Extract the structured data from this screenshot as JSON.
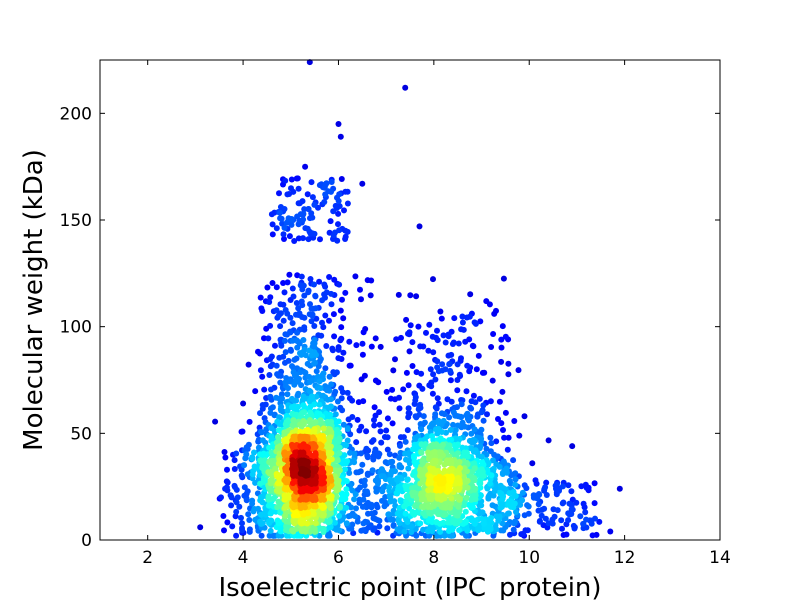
{
  "chart_data": {
    "type": "scatter",
    "title": "",
    "xlabel": "Isoelectric point (IPC_protein)",
    "ylabel": "Molecular weight (kDa)",
    "xlim": [
      1,
      14
    ],
    "ylim": [
      0,
      225
    ],
    "xticks": [
      2,
      4,
      6,
      8,
      10,
      12,
      14
    ],
    "yticks": [
      0,
      50,
      100,
      150,
      200
    ],
    "grid": false,
    "legend": "none",
    "colormap": "jet (point density: blue = sparse, red = dense)",
    "density_clusters": [
      {
        "center_x": 5.3,
        "center_y": 33,
        "peak_density": "high"
      },
      {
        "center_x": 8.2,
        "center_y": 28,
        "peak_density": "medium"
      }
    ],
    "outliers": [
      {
        "x": 5.4,
        "y": 224
      },
      {
        "x": 7.4,
        "y": 212
      },
      {
        "x": 6.0,
        "y": 195
      },
      {
        "x": 6.05,
        "y": 189
      },
      {
        "x": 5.3,
        "y": 175
      },
      {
        "x": 6.5,
        "y": 167
      },
      {
        "x": 7.7,
        "y": 147
      },
      {
        "x": 9.1,
        "y": 112
      },
      {
        "x": 9.9,
        "y": 58
      },
      {
        "x": 10.9,
        "y": 44
      },
      {
        "x": 11.9,
        "y": 24
      },
      {
        "x": 11.7,
        "y": 4
      },
      {
        "x": 3.1,
        "y": 6
      },
      {
        "x": 4.0,
        "y": 64
      },
      {
        "x": 10.3,
        "y": 7
      },
      {
        "x": 11.3,
        "y": 9
      }
    ]
  }
}
